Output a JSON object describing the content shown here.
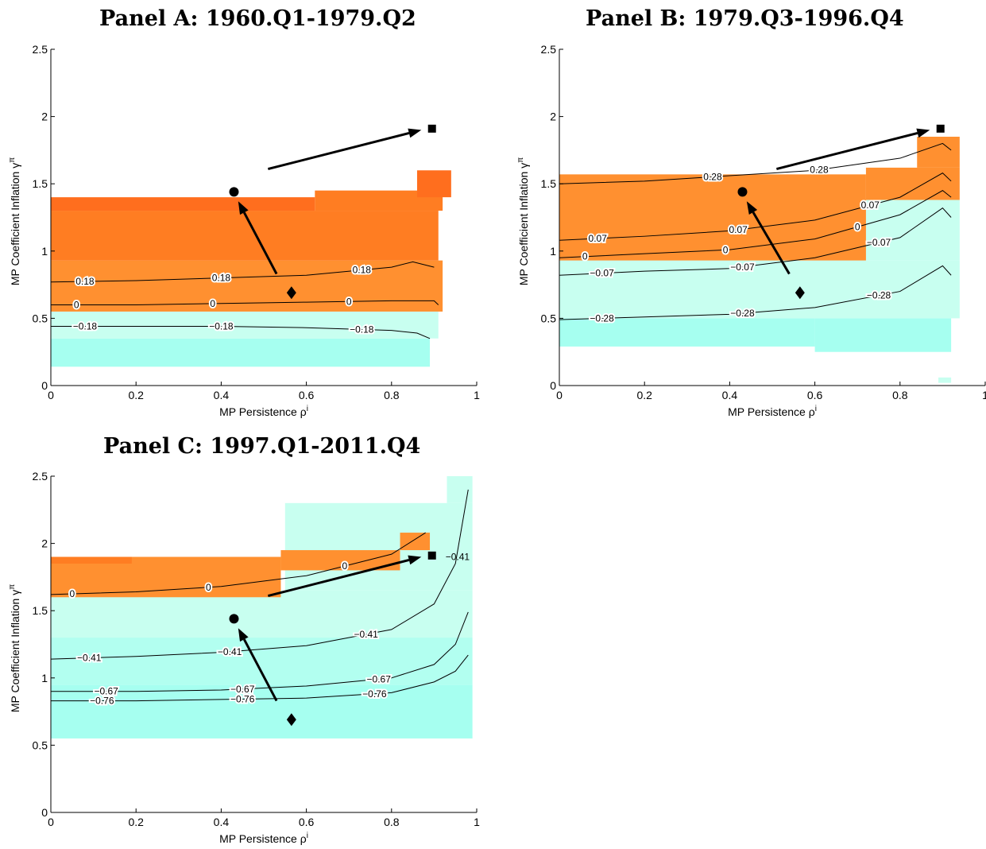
{
  "colors": {
    "orange_dark": "#ff6e1e",
    "orange_mid": "#ff7d22",
    "orange_light": "#ff9030",
    "cyan_light": "#c8fff0",
    "cyan_mid": "#b2fff0",
    "cyan_dark": "#a6fff0",
    "line": "#000000"
  },
  "chart_data": [
    {
      "type": "heatmap",
      "title": "Panel A: 1960.Q1-1979.Q2",
      "xlabel": "MP Persistence ρ",
      "xlabel_sup": "i",
      "ylabel": "MP Coefficient Inflation γ",
      "ylabel_sup": "π",
      "xlim": [
        0,
        1
      ],
      "ylim": [
        0,
        2.5
      ],
      "xticks": [
        "0",
        "0.2",
        "0.4",
        "0.6",
        "0.8",
        "1"
      ],
      "yticks": [
        "0",
        "0.5",
        "1",
        "1.5",
        "2",
        "2.5"
      ],
      "regions": [
        {
          "color": "cyan_dark",
          "x": [
            0,
            0.89
          ],
          "y": [
            0.14,
            0.35
          ]
        },
        {
          "color": "cyan_light",
          "x": [
            0,
            0.91
          ],
          "y": [
            0.35,
            0.55
          ]
        },
        {
          "color": "orange_light",
          "x": [
            0,
            0.92
          ],
          "y": [
            0.55,
            0.93
          ]
        },
        {
          "color": "orange_mid",
          "x": [
            0,
            0.91
          ],
          "y": [
            0.93,
            1.3
          ]
        },
        {
          "color": "orange_dark",
          "x": [
            0,
            0.62
          ],
          "y": [
            1.3,
            1.4
          ]
        },
        {
          "color": "orange_mid",
          "x": [
            0.62,
            0.92
          ],
          "y": [
            1.3,
            1.45
          ]
        },
        {
          "color": "orange_dark",
          "x": [
            0.86,
            0.94
          ],
          "y": [
            1.4,
            1.6
          ]
        }
      ],
      "contours": [
        {
          "label": "0.18",
          "x": [
            0.0,
            0.2,
            0.4,
            0.6,
            0.8,
            0.85,
            0.9
          ],
          "y": [
            0.77,
            0.78,
            0.8,
            0.82,
            0.88,
            0.92,
            0.88
          ],
          "label_x": [
            0.08,
            0.4,
            0.73
          ]
        },
        {
          "label": "0",
          "x": [
            0.0,
            0.2,
            0.4,
            0.6,
            0.8,
            0.9,
            0.91
          ],
          "y": [
            0.6,
            0.6,
            0.61,
            0.62,
            0.63,
            0.63,
            0.6
          ],
          "label_x": [
            0.06,
            0.38,
            0.7
          ]
        },
        {
          "label": "−0.18",
          "x": [
            0.0,
            0.2,
            0.4,
            0.6,
            0.8,
            0.86,
            0.89
          ],
          "y": [
            0.44,
            0.44,
            0.44,
            0.43,
            0.41,
            0.39,
            0.35
          ],
          "label_x": [
            0.08,
            0.4,
            0.73
          ]
        }
      ],
      "markers": {
        "circle": [
          0.43,
          1.44
        ],
        "diamond": [
          0.565,
          0.69
        ],
        "square": [
          0.895,
          1.91
        ]
      },
      "arrows": [
        {
          "from": [
            0.53,
            0.83
          ],
          "to": [
            0.44,
            1.37
          ]
        },
        {
          "from": [
            0.51,
            1.61
          ],
          "to": [
            0.87,
            1.9
          ]
        }
      ]
    },
    {
      "type": "heatmap",
      "title": "Panel B: 1979.Q3-1996.Q4",
      "xlabel": "MP Persistence ρ",
      "xlabel_sup": "i",
      "ylabel": "MP Coefficient Inflation γ",
      "ylabel_sup": "π",
      "xlim": [
        0,
        1
      ],
      "ylim": [
        0,
        2.5
      ],
      "xticks": [
        "0",
        "0.2",
        "0.4",
        "0.6",
        "0.8",
        "1"
      ],
      "yticks": [
        "0",
        "0.5",
        "1",
        "1.5",
        "2",
        "2.5"
      ],
      "regions": [
        {
          "color": "cyan_dark",
          "x": [
            0,
            0.6
          ],
          "y": [
            0.29,
            0.5
          ]
        },
        {
          "color": "cyan_dark",
          "x": [
            0.6,
            0.92
          ],
          "y": [
            0.25,
            0.5
          ]
        },
        {
          "color": "cyan_light",
          "x": [
            0,
            0.94
          ],
          "y": [
            0.5,
            0.93
          ]
        },
        {
          "color": "cyan_light",
          "x": [
            0.72,
            0.94
          ],
          "y": [
            0.93,
            1.38
          ]
        },
        {
          "color": "orange_light",
          "x": [
            0,
            0.72
          ],
          "y": [
            0.93,
            1.57
          ]
        },
        {
          "color": "orange_light",
          "x": [
            0.72,
            0.94
          ],
          "y": [
            1.38,
            1.62
          ]
        },
        {
          "color": "orange_light",
          "x": [
            0.84,
            0.94
          ],
          "y": [
            1.62,
            1.85
          ]
        },
        {
          "color": "cyan_light",
          "x": [
            0.89,
            0.92
          ],
          "y": [
            0.02,
            0.06
          ]
        }
      ],
      "contours": [
        {
          "label": "0.28",
          "x": [
            0.0,
            0.2,
            0.4,
            0.6,
            0.8,
            0.9,
            0.92
          ],
          "y": [
            1.5,
            1.52,
            1.56,
            1.6,
            1.69,
            1.8,
            1.75
          ],
          "label_x": [
            0.36,
            0.61
          ]
        },
        {
          "label": "0.07",
          "x": [
            0.0,
            0.2,
            0.4,
            0.6,
            0.8,
            0.9,
            0.92
          ],
          "y": [
            1.08,
            1.11,
            1.15,
            1.23,
            1.4,
            1.58,
            1.52
          ],
          "label_x": [
            0.09,
            0.42,
            0.73
          ]
        },
        {
          "label": "0",
          "x": [
            0.0,
            0.2,
            0.4,
            0.6,
            0.8,
            0.9,
            0.92
          ],
          "y": [
            0.95,
            0.98,
            1.01,
            1.09,
            1.27,
            1.45,
            1.4
          ],
          "label_x": [
            0.06,
            0.39,
            0.7
          ]
        },
        {
          "label": "−0.07",
          "x": [
            0.0,
            0.2,
            0.4,
            0.6,
            0.8,
            0.9,
            0.92
          ],
          "y": [
            0.82,
            0.85,
            0.87,
            0.95,
            1.1,
            1.32,
            1.25
          ],
          "label_x": [
            0.1,
            0.43,
            0.75
          ]
        },
        {
          "label": "−0.28",
          "x": [
            0.0,
            0.2,
            0.4,
            0.6,
            0.8,
            0.9,
            0.92
          ],
          "y": [
            0.49,
            0.51,
            0.53,
            0.58,
            0.7,
            0.89,
            0.82
          ],
          "label_x": [
            0.1,
            0.43,
            0.75
          ]
        }
      ],
      "markers": {
        "circle": [
          0.43,
          1.44
        ],
        "diamond": [
          0.565,
          0.69
        ],
        "square": [
          0.895,
          1.91
        ]
      },
      "arrows": [
        {
          "from": [
            0.54,
            0.83
          ],
          "to": [
            0.44,
            1.37
          ]
        },
        {
          "from": [
            0.51,
            1.61
          ],
          "to": [
            0.87,
            1.9
          ]
        }
      ]
    },
    {
      "type": "heatmap",
      "title": "Panel C: 1997.Q1-2011.Q4",
      "xlabel": "MP Persistence ρ",
      "xlabel_sup": "i",
      "ylabel": "MP Coefficient Inflation γ",
      "ylabel_sup": "π",
      "xlim": [
        0,
        1
      ],
      "ylim": [
        0,
        2.5
      ],
      "xticks": [
        "0",
        "0.2",
        "0.4",
        "0.6",
        "0.8",
        "1"
      ],
      "yticks": [
        "0",
        "0.5",
        "1",
        "1.5",
        "2",
        "2.5"
      ],
      "regions": [
        {
          "color": "cyan_dark",
          "x": [
            0,
            0.99
          ],
          "y": [
            0.55,
            0.95
          ]
        },
        {
          "color": "cyan_mid",
          "x": [
            0,
            0.99
          ],
          "y": [
            0.95,
            1.3
          ]
        },
        {
          "color": "cyan_light",
          "x": [
            0,
            0.99
          ],
          "y": [
            1.3,
            1.65
          ]
        },
        {
          "color": "cyan_light",
          "x": [
            0.55,
            0.99
          ],
          "y": [
            1.65,
            2.3
          ]
        },
        {
          "color": "cyan_light",
          "x": [
            0.93,
            0.99
          ],
          "y": [
            2.3,
            2.5
          ]
        },
        {
          "color": "orange_light",
          "x": [
            0,
            0.54
          ],
          "y": [
            1.6,
            1.9
          ]
        },
        {
          "color": "orange_light",
          "x": [
            0.54,
            0.82
          ],
          "y": [
            1.8,
            1.95
          ]
        },
        {
          "color": "orange_light",
          "x": [
            0.82,
            0.89
          ],
          "y": [
            1.95,
            2.08
          ]
        },
        {
          "color": "orange_mid",
          "x": [
            0,
            0.19
          ],
          "y": [
            1.85,
            1.9
          ]
        }
      ],
      "contours": [
        {
          "label": "0",
          "x": [
            0.0,
            0.2,
            0.4,
            0.6,
            0.8,
            0.88
          ],
          "y": [
            1.62,
            1.64,
            1.68,
            1.76,
            1.92,
            2.08
          ],
          "label_x": [
            0.05,
            0.37,
            0.69
          ]
        },
        {
          "label": "−0.41",
          "x": [
            0.0,
            0.2,
            0.4,
            0.6,
            0.8,
            0.9,
            0.95,
            0.98
          ],
          "y": [
            1.14,
            1.16,
            1.19,
            1.24,
            1.36,
            1.55,
            1.85,
            2.4
          ],
          "label_x": [
            0.09,
            0.42,
            0.74
          ]
        },
        {
          "label": "−0.67",
          "x": [
            0.0,
            0.2,
            0.4,
            0.6,
            0.8,
            0.9,
            0.95,
            0.98
          ],
          "y": [
            0.9,
            0.9,
            0.91,
            0.94,
            1.0,
            1.1,
            1.25,
            1.49
          ],
          "label_x": [
            0.13,
            0.45,
            0.77
          ]
        },
        {
          "label": "−0.76",
          "x": [
            0.0,
            0.2,
            0.4,
            0.6,
            0.8,
            0.9,
            0.95,
            0.98
          ],
          "y": [
            0.83,
            0.83,
            0.84,
            0.85,
            0.89,
            0.97,
            1.05,
            1.17
          ],
          "label_x": [
            0.12,
            0.45,
            0.76
          ]
        }
      ],
      "extra_labels": [
        {
          "text": "−0.41",
          "x": 0.955,
          "y": 1.9
        }
      ],
      "markers": {
        "circle": [
          0.43,
          1.44
        ],
        "diamond": [
          0.565,
          0.69
        ],
        "square": [
          0.895,
          1.91
        ]
      },
      "arrows": [
        {
          "from": [
            0.53,
            0.83
          ],
          "to": [
            0.44,
            1.37
          ]
        },
        {
          "from": [
            0.51,
            1.61
          ],
          "to": [
            0.87,
            1.9
          ]
        }
      ]
    }
  ]
}
